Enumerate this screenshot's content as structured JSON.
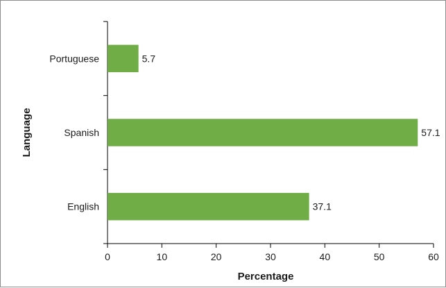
{
  "chart_data": {
    "type": "bar",
    "orientation": "horizontal",
    "categories": [
      "Portuguese",
      "Spanish",
      "English"
    ],
    "values": [
      5.7,
      57.1,
      37.1
    ],
    "data_labels": [
      "5.7",
      "57.1",
      "37.1"
    ],
    "xlabel": "Percentage",
    "ylabel": "Language",
    "xlim": [
      0,
      60
    ],
    "x_ticks": [
      "0",
      "10",
      "20",
      "30",
      "40",
      "50",
      "60"
    ],
    "grid": false,
    "legend": "none",
    "bar_color": "#70ad47"
  }
}
